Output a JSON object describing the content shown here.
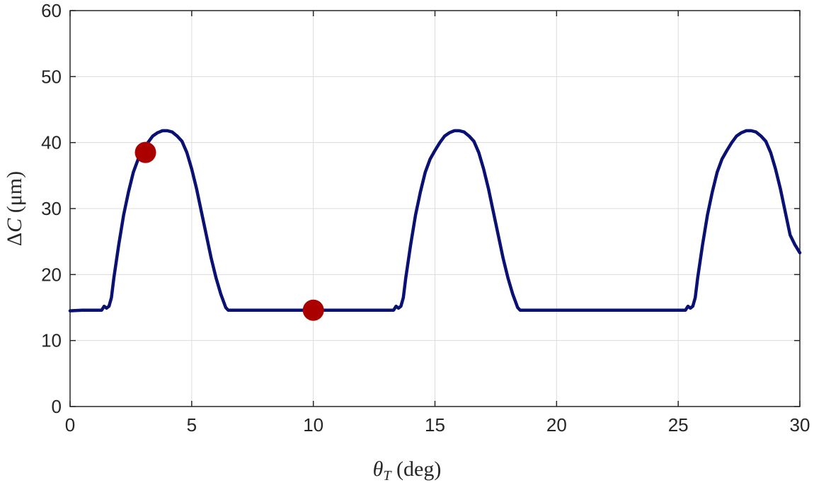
{
  "chart_data": {
    "type": "line",
    "xlabel": {
      "symbol": "θ",
      "subscript": "T",
      "unit": " (deg)"
    },
    "ylabel": {
      "symbol_prefix": "Δ",
      "symbol": "C",
      "unit": " (μm)"
    },
    "xlim": [
      0,
      30
    ],
    "ylim": [
      0,
      60
    ],
    "xticks": [
      "0",
      "5",
      "10",
      "15",
      "20",
      "25",
      "30"
    ],
    "yticks": [
      "0",
      "10",
      "20",
      "30",
      "40",
      "50",
      "60"
    ],
    "grid": true,
    "line_color": "#0a1172",
    "marker_color": "#aa0000",
    "series": [
      {
        "x": [
          0,
          0.5,
          1.0,
          1.3,
          1.4,
          1.5,
          1.6,
          1.7,
          1.8,
          2.0,
          2.2,
          2.4,
          2.6,
          2.8,
          3.0,
          3.2,
          3.4,
          3.6,
          3.8,
          4.0,
          4.2,
          4.4,
          4.6,
          4.8,
          5.0,
          5.2,
          5.4,
          5.6,
          5.8,
          6.0,
          6.2,
          6.4,
          6.5,
          6.6,
          7.0,
          8.0,
          9.0,
          10.0,
          11.0,
          12.0,
          13.0,
          13.3,
          13.4,
          13.5,
          13.6,
          13.7,
          13.8,
          14.0,
          14.2,
          14.4,
          14.6,
          14.8,
          15.0,
          15.2,
          15.4,
          15.6,
          15.8,
          16.0,
          16.2,
          16.4,
          16.6,
          16.8,
          17.0,
          17.2,
          17.4,
          17.6,
          17.8,
          18.0,
          18.2,
          18.4,
          18.5,
          18.6,
          19.0,
          20.0,
          21.0,
          22.0,
          23.0,
          24.0,
          25.0,
          25.3,
          25.4,
          25.5,
          25.6,
          25.7,
          25.8,
          26.0,
          26.2,
          26.4,
          26.6,
          26.8,
          27.0,
          27.2,
          27.4,
          27.6,
          27.8,
          28.0,
          28.2,
          28.4,
          28.6,
          28.8,
          29.0,
          29.2,
          29.4,
          29.6,
          29.8,
          30.0
        ],
        "y": [
          14.5,
          14.6,
          14.6,
          14.6,
          15.2,
          14.9,
          15.2,
          16.5,
          19.5,
          24.5,
          29.0,
          32.5,
          35.5,
          37.5,
          38.8,
          40.0,
          41.0,
          41.5,
          41.8,
          41.8,
          41.6,
          41.0,
          40.2,
          38.5,
          36.0,
          33.0,
          29.5,
          26.0,
          22.5,
          19.5,
          17.0,
          15.0,
          14.6,
          14.6,
          14.6,
          14.6,
          14.6,
          14.6,
          14.6,
          14.6,
          14.6,
          14.6,
          15.2,
          14.9,
          15.2,
          16.5,
          19.5,
          24.5,
          29.0,
          32.5,
          35.5,
          37.5,
          38.8,
          40.0,
          41.0,
          41.5,
          41.8,
          41.8,
          41.6,
          41.0,
          40.2,
          38.5,
          36.0,
          33.0,
          29.5,
          26.0,
          22.5,
          19.5,
          17.0,
          15.0,
          14.6,
          14.6,
          14.6,
          14.6,
          14.6,
          14.6,
          14.6,
          14.6,
          14.6,
          14.6,
          15.2,
          14.9,
          15.2,
          16.5,
          19.5,
          24.5,
          29.0,
          32.5,
          35.5,
          37.5,
          38.8,
          40.0,
          41.0,
          41.5,
          41.8,
          41.8,
          41.6,
          41.0,
          40.2,
          38.5,
          36.0,
          33.0,
          29.5,
          26.0,
          24.5,
          23.3
        ]
      }
    ],
    "markers": [
      {
        "x": 3.1,
        "y": 38.5
      },
      {
        "x": 10.0,
        "y": 14.6
      }
    ]
  }
}
